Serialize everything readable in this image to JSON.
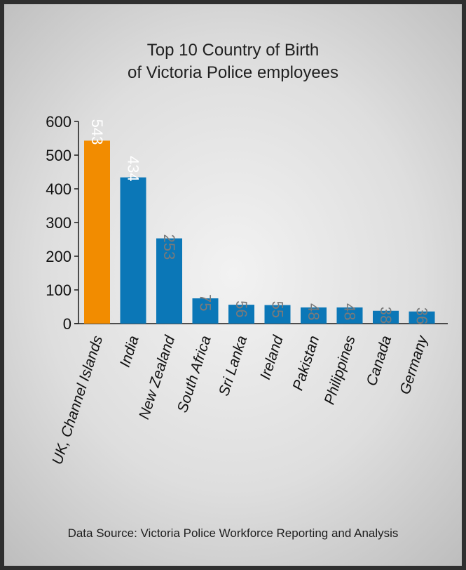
{
  "chart_data": {
    "type": "bar",
    "title": [
      "Top 10 Country of Birth",
      "of Victoria Police employees"
    ],
    "categories": [
      "UK, Channel Islands",
      "India",
      "New Zealand",
      "South Africa",
      "Sri Lanka",
      "Ireland",
      "Pakistan",
      "Philippines",
      "Canada",
      "Germany"
    ],
    "values": [
      543,
      434,
      253,
      75,
      56,
      55,
      48,
      48,
      38,
      36
    ],
    "data_labels": [
      "543",
      "434",
      "253",
      "75",
      "56",
      "55",
      "48",
      "48",
      "38",
      "36"
    ],
    "yticks": [
      "0",
      "100",
      "200",
      "300",
      "400",
      "500",
      "600"
    ],
    "ylim": [
      0,
      600
    ],
    "xlabel": "",
    "ylabel": "",
    "grid": false,
    "colors": {
      "highlight": "#f28c00",
      "bar": "#0b77b7",
      "label_inside": "#ffffff",
      "label_outside": "#7a7a7a",
      "axis": "#1a1a1a"
    }
  },
  "footer": {
    "source": "Data Source: Victoria Police Workforce Reporting and Analysis"
  }
}
